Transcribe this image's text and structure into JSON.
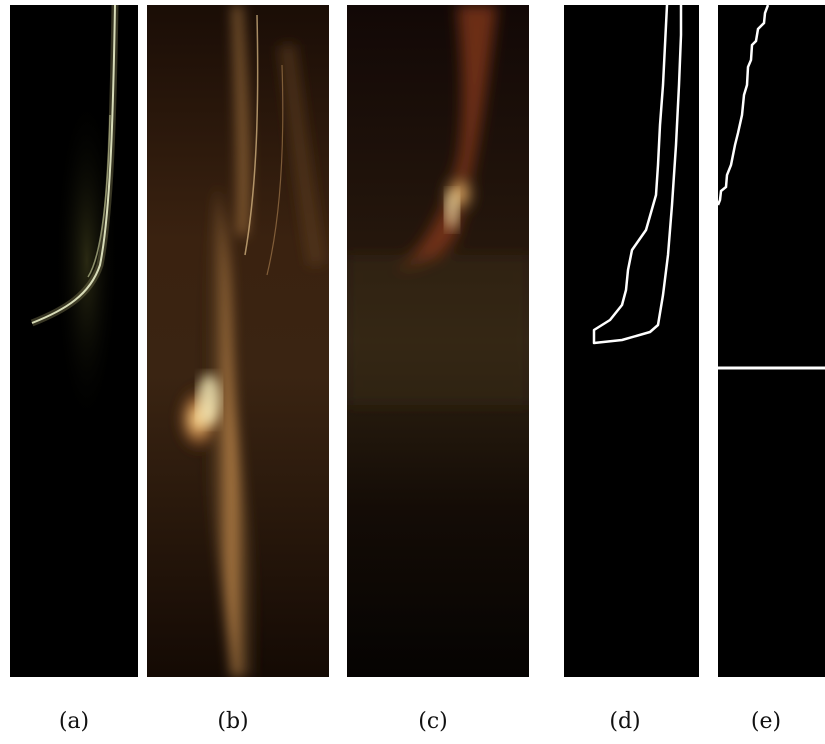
{
  "figure": {
    "panels": [
      {
        "id": "a",
        "label": "(a)"
      },
      {
        "id": "b",
        "label": "(b)"
      },
      {
        "id": "c",
        "label": "(c)"
      },
      {
        "id": "d",
        "label": "(d)"
      },
      {
        "id": "e",
        "label": "(e)"
      }
    ],
    "colors": {
      "background": "#000000",
      "flame_core": "#ffe39a",
      "flame_mid": "#c57a35",
      "flame_dark": "#3a1d0c",
      "outline": "#ffffff"
    }
  }
}
